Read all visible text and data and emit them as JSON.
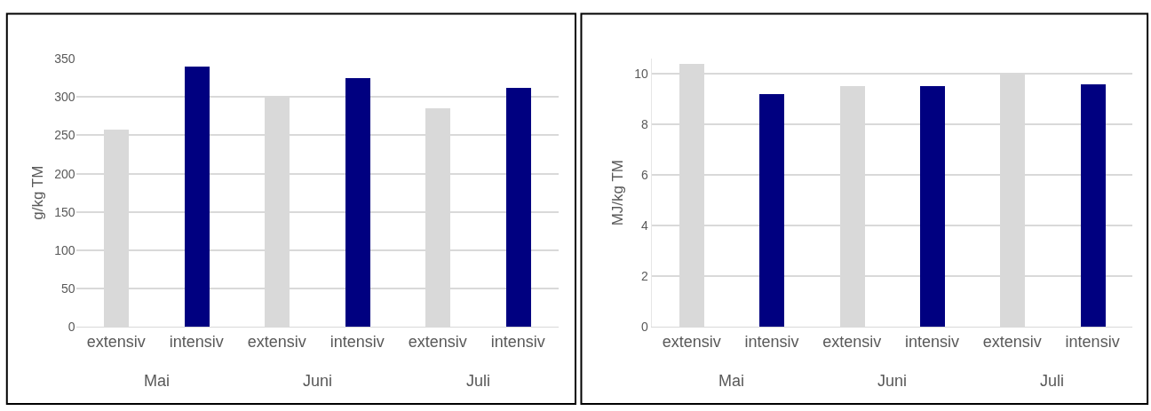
{
  "chart_data": [
    {
      "type": "bar",
      "ylabel": "g/kg TM",
      "categories": [
        "extensiv",
        "intensiv",
        "extensiv",
        "intensiv",
        "extensiv",
        "intensiv"
      ],
      "values": [
        257,
        340,
        300,
        325,
        285,
        312
      ],
      "colors": [
        "#d9d9d9",
        "#000080",
        "#d9d9d9",
        "#000080",
        "#d9d9d9",
        "#000080"
      ],
      "ylim": [
        0,
        350
      ],
      "yticks": [
        0,
        50,
        100,
        150,
        200,
        250,
        300,
        350
      ],
      "grid": "y",
      "annotations": [
        "Mai",
        "Juni",
        "Juli"
      ]
    },
    {
      "type": "bar",
      "ylabel": "MJ/kg TM",
      "categories": [
        "extensiv",
        "intensiv",
        "extensiv",
        "intensiv",
        "extensiv",
        "intensiv"
      ],
      "values": [
        10.4,
        9.2,
        9.5,
        9.5,
        10.0,
        9.6
      ],
      "colors": [
        "#d9d9d9",
        "#000080",
        "#d9d9d9",
        "#000080",
        "#d9d9d9",
        "#000080"
      ],
      "ylim": [
        0,
        10.6
      ],
      "yticks": [
        0,
        2,
        4,
        6,
        8,
        10
      ],
      "grid": "y",
      "annotations": [
        "Mai",
        "Juni",
        "Juli"
      ]
    }
  ]
}
